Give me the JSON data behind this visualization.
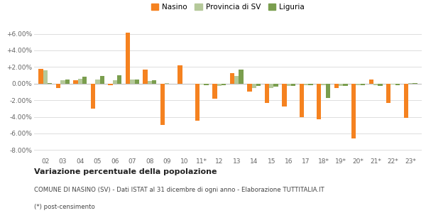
{
  "categories": [
    "02",
    "03",
    "04",
    "05",
    "06",
    "07",
    "08",
    "09",
    "10",
    "11*",
    "12",
    "13",
    "14",
    "15",
    "16",
    "17",
    "18*",
    "19*",
    "20*",
    "21*",
    "22*",
    "23*"
  ],
  "nasino": [
    1.8,
    -0.5,
    0.4,
    -3.0,
    -0.2,
    6.1,
    1.7,
    -5.0,
    2.2,
    -4.5,
    -1.8,
    1.3,
    -1.0,
    -2.3,
    -2.8,
    -4.0,
    -4.3,
    -0.5,
    -6.6,
    0.5,
    -2.3,
    -4.1
  ],
  "provincia": [
    1.6,
    0.4,
    0.6,
    0.5,
    0.4,
    0.5,
    0.3,
    0.1,
    0.0,
    -0.1,
    -0.3,
    0.9,
    -0.5,
    -0.5,
    -0.3,
    -0.2,
    -0.2,
    -0.3,
    -0.2,
    -0.2,
    -0.1,
    0.1
  ],
  "liguria": [
    0.1,
    0.5,
    0.8,
    0.9,
    1.0,
    0.5,
    0.4,
    0.0,
    0.0,
    -0.2,
    -0.2,
    1.7,
    -0.3,
    -0.4,
    -0.3,
    -0.2,
    -1.7,
    -0.3,
    -0.2,
    -0.3,
    -0.2,
    0.1
  ],
  "nasino_color": "#f58220",
  "provincia_color": "#b5c99a",
  "liguria_color": "#7a9e4e",
  "bg_color": "#ffffff",
  "grid_color": "#dddddd",
  "yticks": [
    -8.0,
    -6.0,
    -4.0,
    -2.0,
    0.0,
    2.0,
    4.0,
    6.0
  ],
  "ytick_labels": [
    "-8.00%",
    "-6.00%",
    "-4.00%",
    "-2.00%",
    "0.00%",
    "+2.00%",
    "+4.00%",
    "+6.00%"
  ],
  "ylim": [
    -8.8,
    7.5
  ],
  "title_bold": "Variazione percentuale della popolazione",
  "subtitle": "COMUNE DI NASINO (SV) - Dati ISTAT al 31 dicembre di ogni anno - Elaborazione TUTTITALIA.IT",
  "footnote": "(*) post-censimento",
  "legend_nasino": "Nasino",
  "legend_provincia": "Provincia di SV",
  "legend_liguria": "Liguria",
  "bar_width": 0.26
}
